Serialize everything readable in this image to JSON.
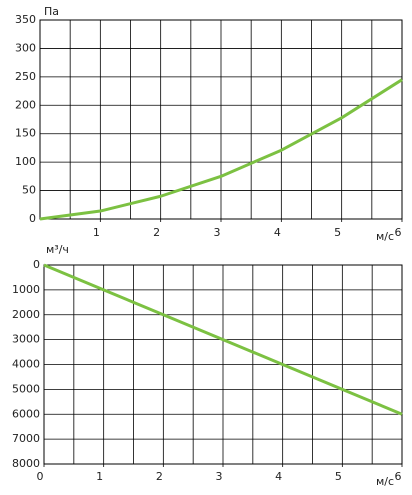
{
  "chart_data": [
    {
      "type": "line",
      "y_label": "Па",
      "x_label": "м/с",
      "x": [
        0,
        1,
        2,
        3,
        4,
        5,
        6
      ],
      "series": [
        {
          "color": "#7cc142",
          "values": [
            0,
            14,
            40,
            75,
            121,
            178,
            245
          ]
        }
      ],
      "xlim": [
        0,
        6
      ],
      "xticks": [
        1,
        2,
        3,
        4,
        5,
        6
      ],
      "xminor": 0.5,
      "ylim": [
        0,
        350
      ],
      "yticks": [
        0,
        50,
        100,
        150,
        200,
        250,
        300,
        350
      ],
      "y_inverted": false,
      "grid": true
    },
    {
      "type": "line",
      "y_label": "м³/ч",
      "x_label": "м/с",
      "x": [
        0,
        1,
        2,
        3,
        4,
        5,
        6
      ],
      "series": [
        {
          "color": "#7cc142",
          "values": [
            0,
            1000,
            2000,
            3000,
            4000,
            5000,
            6000
          ]
        }
      ],
      "xlim": [
        0,
        6
      ],
      "xticks": [
        0,
        1,
        2,
        3,
        4,
        5,
        6
      ],
      "xminor": 0.5,
      "ylim": [
        0,
        8000
      ],
      "yticks": [
        0,
        1000,
        2000,
        3000,
        4000,
        5000,
        6000,
        7000,
        8000
      ],
      "y_inverted": true,
      "grid": true
    }
  ]
}
